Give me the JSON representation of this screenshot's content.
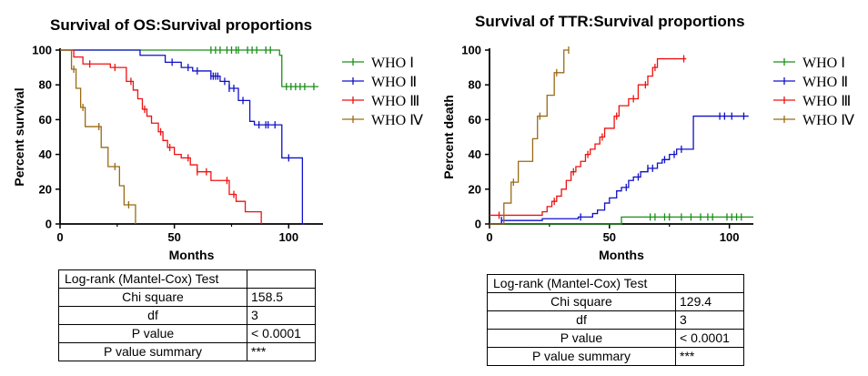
{
  "legend_labels": [
    "WHO Ⅰ",
    "WHO Ⅱ",
    "WHO Ⅲ",
    "WHO Ⅳ"
  ],
  "colors": {
    "WHO Ⅰ": "#1a8f1a",
    "WHO Ⅱ": "#1010c8",
    "WHO Ⅲ": "#ee1111",
    "WHO Ⅳ": "#9a6a14"
  },
  "chart_data": [
    {
      "type": "line",
      "title": "Survival of OS:Survival proportions",
      "xlabel": "Months",
      "ylabel": "Percent survival",
      "xlim": [
        0,
        115
      ],
      "ylim": [
        0,
        100
      ],
      "xticks": [
        0,
        50,
        100
      ],
      "yticks": [
        0,
        20,
        40,
        60,
        80,
        100
      ],
      "legend_position": "right",
      "series": [
        {
          "name": "WHO Ⅰ",
          "x": [
            0,
            96,
            97,
            113
          ],
          "y": [
            100,
            97,
            79,
            79
          ],
          "censor_x": [
            66,
            68,
            70,
            73,
            75,
            77,
            78,
            82,
            84,
            86,
            90,
            92,
            99,
            101,
            103,
            105,
            107,
            111
          ]
        },
        {
          "name": "WHO Ⅱ",
          "x": [
            0,
            35,
            46,
            53,
            58,
            66,
            70,
            74,
            78,
            83,
            85,
            97,
            106,
            107
          ],
          "y": [
            100,
            97,
            93,
            90,
            88,
            85,
            82,
            78,
            71,
            59,
            57,
            38,
            0,
            0
          ],
          "censor_x": [
            49,
            56,
            60,
            66,
            67,
            68,
            69,
            72,
            74,
            76,
            80,
            87,
            90,
            91,
            94,
            100
          ]
        },
        {
          "name": "WHO Ⅲ",
          "x": [
            0,
            6,
            10,
            22,
            29,
            32,
            34,
            36,
            38,
            40,
            43,
            45,
            47,
            50,
            53,
            57,
            60,
            66,
            70,
            74,
            77,
            81,
            88
          ],
          "y": [
            100,
            96,
            92,
            90,
            82,
            77,
            72,
            66,
            62,
            58,
            53,
            48,
            44,
            40,
            38,
            34,
            30,
            25,
            25,
            17,
            13,
            7,
            0
          ],
          "censor_x": [
            13,
            24,
            31,
            37,
            44,
            48,
            56,
            60,
            64,
            73,
            76
          ]
        },
        {
          "name": "WHO Ⅳ",
          "x": [
            0,
            5,
            7,
            9,
            11,
            13,
            18,
            21,
            23,
            26,
            28,
            30,
            33
          ],
          "y": [
            100,
            89,
            78,
            67,
            56,
            56,
            44,
            33,
            33,
            22,
            11,
            11,
            0
          ],
          "censor_x": [
            6,
            10,
            17,
            24,
            30
          ]
        }
      ]
    },
    {
      "type": "line",
      "title": "Survival of TTR:Survival proportions",
      "xlabel": "Months",
      "ylabel": "Percent death",
      "xlim": [
        0,
        110
      ],
      "ylim": [
        0,
        100
      ],
      "xticks": [
        0,
        50,
        100
      ],
      "yticks": [
        0,
        20,
        40,
        60,
        80,
        100
      ],
      "legend_position": "right",
      "series": [
        {
          "name": "WHO Ⅰ",
          "x": [
            0,
            55,
            110
          ],
          "y": [
            0,
            4,
            4
          ],
          "censor_x": [
            67,
            69,
            73,
            75,
            80,
            84,
            88,
            91,
            93,
            99,
            101,
            103,
            105
          ]
        },
        {
          "name": "WHO Ⅱ",
          "x": [
            0,
            5,
            22,
            37,
            43,
            45,
            48,
            50,
            53,
            55,
            58,
            60,
            63,
            66,
            70,
            72,
            75,
            78,
            82,
            85,
            108
          ],
          "y": [
            0,
            2,
            3,
            4,
            6,
            8,
            12,
            15,
            19,
            21,
            25,
            27,
            30,
            32,
            35,
            37,
            40,
            43,
            43,
            62,
            62
          ],
          "censor_x": [
            5,
            38,
            57,
            62,
            66,
            68,
            73,
            77,
            80,
            96,
            98,
            101,
            106
          ]
        },
        {
          "name": "WHO Ⅲ",
          "x": [
            0,
            22,
            24,
            26,
            28,
            30,
            32,
            34,
            36,
            38,
            40,
            42,
            44,
            46,
            48,
            52,
            54,
            58,
            62,
            66,
            68,
            70,
            82
          ],
          "y": [
            5,
            7,
            10,
            13,
            16,
            20,
            25,
            30,
            33,
            36,
            40,
            43,
            46,
            50,
            55,
            62,
            68,
            72,
            80,
            85,
            90,
            95,
            95
          ],
          "censor_x": [
            4,
            27,
            35,
            41,
            47,
            53,
            60,
            65,
            69,
            81
          ]
        },
        {
          "name": "WHO Ⅳ",
          "x": [
            0,
            6,
            9,
            12,
            16,
            18,
            20,
            22,
            24,
            27,
            29,
            31,
            33
          ],
          "y": [
            0,
            12,
            24,
            36,
            36,
            49,
            62,
            62,
            74,
            87,
            87,
            100,
            100
          ],
          "censor_x": [
            10,
            21,
            28,
            33
          ]
        }
      ]
    }
  ],
  "tables": [
    {
      "rows": [
        [
          "Log-rank (Mantel-Cox) Test",
          ""
        ],
        [
          "Chi square",
          "158.5"
        ],
        [
          "df",
          "3"
        ],
        [
          "P value",
          "< 0.0001"
        ],
        [
          "P value summary",
          "***"
        ]
      ]
    },
    {
      "rows": [
        [
          "Log-rank (Mantel-Cox) Test",
          ""
        ],
        [
          "Chi square",
          "129.4"
        ],
        [
          "df",
          "3"
        ],
        [
          "P value",
          "< 0.0001"
        ],
        [
          "P value summary",
          "***"
        ]
      ]
    }
  ]
}
